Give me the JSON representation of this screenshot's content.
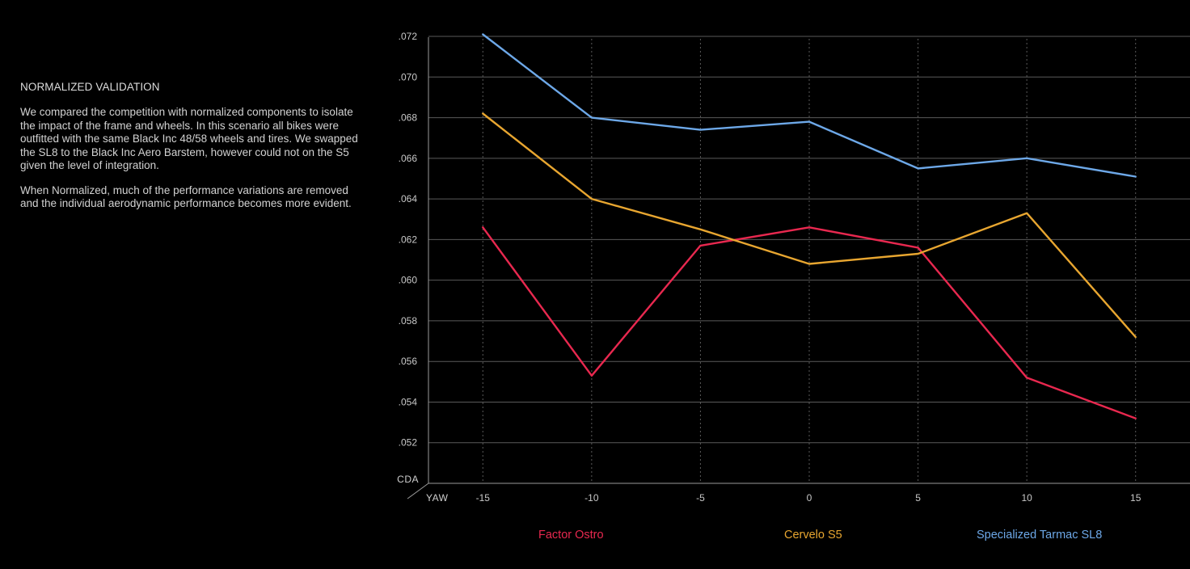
{
  "panel": {
    "heading": "NORMALIZED VALIDATION",
    "paragraph1": "We compared the competition with normalized components to isolate the impact of the frame and wheels. In this scenario all bikes were outfitted with the same Black Inc 48/58 wheels and tires. We swapped the SL8 to the Black Inc Aero Barstem,  however could not on the S5 given the level of integration.",
    "paragraph2": "When Normalized, much of the performance variations are removed and the individual aerodynamic performance becomes more evident."
  },
  "chart_data": {
    "type": "line",
    "title": "",
    "xlabel": "YAW",
    "ylabel": "CDA",
    "x": [
      -15,
      -10,
      -5,
      0,
      5,
      10,
      15
    ],
    "x_tick_labels": [
      "-15",
      "-10",
      "-5",
      "0",
      "5",
      "10",
      "15"
    ],
    "y_tick_values": [
      0.052,
      0.054,
      0.056,
      0.058,
      0.06,
      0.062,
      0.064,
      0.066,
      0.068,
      0.07,
      0.072
    ],
    "y_tick_labels": [
      ".052",
      ".054",
      ".056",
      ".058",
      ".060",
      ".062",
      ".064",
      ".066",
      ".068",
      ".070",
      ".072"
    ],
    "ylim": [
      0.05,
      0.0722
    ],
    "xlim": [
      -17.5,
      17.5
    ],
    "grid": {
      "horizontal": "solid",
      "vertical": "dotted"
    },
    "legend_position": "bottom",
    "series": [
      {
        "name": "Factor Ostro",
        "color": "#e8284f",
        "values": [
          0.0626,
          0.0553,
          0.0617,
          0.0626,
          0.0616,
          0.0552,
          0.0532
        ]
      },
      {
        "name": "Cervelo S5",
        "color": "#e8a630",
        "values": [
          0.0682,
          0.064,
          0.0625,
          0.0608,
          0.0613,
          0.0633,
          0.0572
        ]
      },
      {
        "name": "Specialized Tarmac SL8",
        "color": "#6da8e8",
        "values": [
          0.0721,
          0.068,
          0.0674,
          0.0678,
          0.0655,
          0.066,
          0.0651
        ]
      }
    ]
  }
}
